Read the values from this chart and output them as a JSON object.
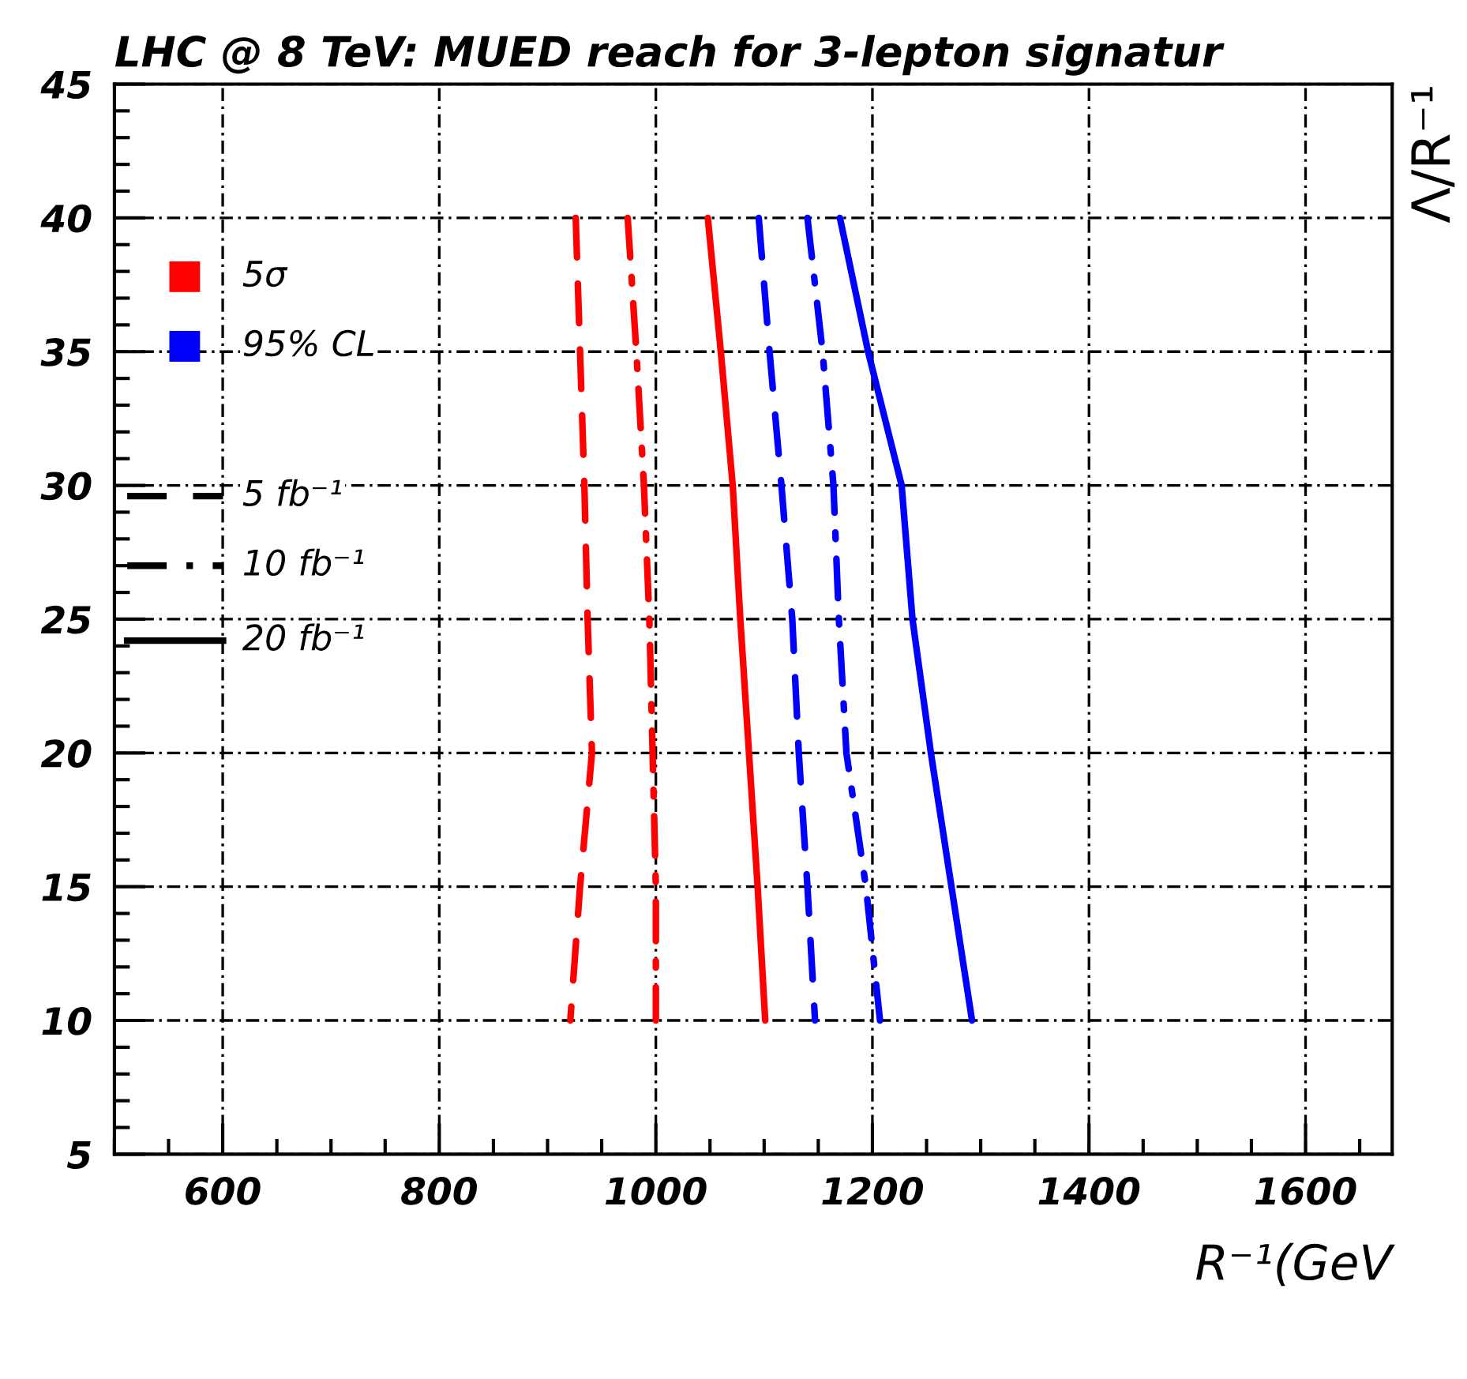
{
  "chart_data": {
    "type": "line",
    "title": "LHC @ 8 TeV: MUED reach for 3-lepton signatur",
    "xlabel": "R⁻¹(GeV",
    "ylabel": "Λ/R⁻¹",
    "series": [
      {
        "color": "#ff0000",
        "line_style": "dashed",
        "x": [
          926,
          934,
          937,
          941,
          930,
          921
        ],
        "values": [
          40,
          30,
          25,
          20,
          15,
          10
        ]
      },
      {
        "color": "#ff0000",
        "line_style": "dotted",
        "x": [
          974,
          982,
          989,
          994,
          997,
          1000,
          1000
        ],
        "values": [
          40,
          35,
          30,
          25,
          20,
          15,
          10
        ]
      },
      {
        "color": "#ff0000",
        "line_style": "solid",
        "x": [
          1048,
          1060,
          1071,
          1078,
          1086,
          1094,
          1101
        ],
        "values": [
          40,
          35,
          30,
          25,
          20,
          15,
          10
        ]
      },
      {
        "color": "#0000ff",
        "line_style": "dashed",
        "x": [
          1095,
          1105,
          1116,
          1126,
          1132,
          1140,
          1147
        ],
        "values": [
          40,
          35,
          30,
          25,
          20,
          15,
          10
        ]
      },
      {
        "color": "#0000ff",
        "line_style": "dotted",
        "x": [
          1140,
          1154,
          1164,
          1169,
          1176,
          1194,
          1207
        ],
        "values": [
          40,
          35,
          30,
          25,
          20,
          15,
          10
        ]
      },
      {
        "color": "#0000ff",
        "line_style": "solid",
        "x": [
          1170,
          1196,
          1227,
          1237,
          1254,
          1273,
          1292
        ],
        "values": [
          40,
          35,
          30,
          25,
          20,
          15,
          10
        ]
      }
    ],
    "annotations": [
      "5σ",
      "95% CL",
      "5 fb⁻¹",
      "10 fb⁻¹",
      "20 fb⁻¹"
    ],
    "grid": true,
    "xlim": [
      500,
      1680
    ],
    "xticks": [
      600,
      800,
      1000,
      1200,
      1400,
      1600
    ],
    "ylim": [
      5,
      45
    ],
    "yticks": [
      5,
      10,
      15,
      20,
      25,
      30,
      35,
      40,
      45
    ]
  }
}
